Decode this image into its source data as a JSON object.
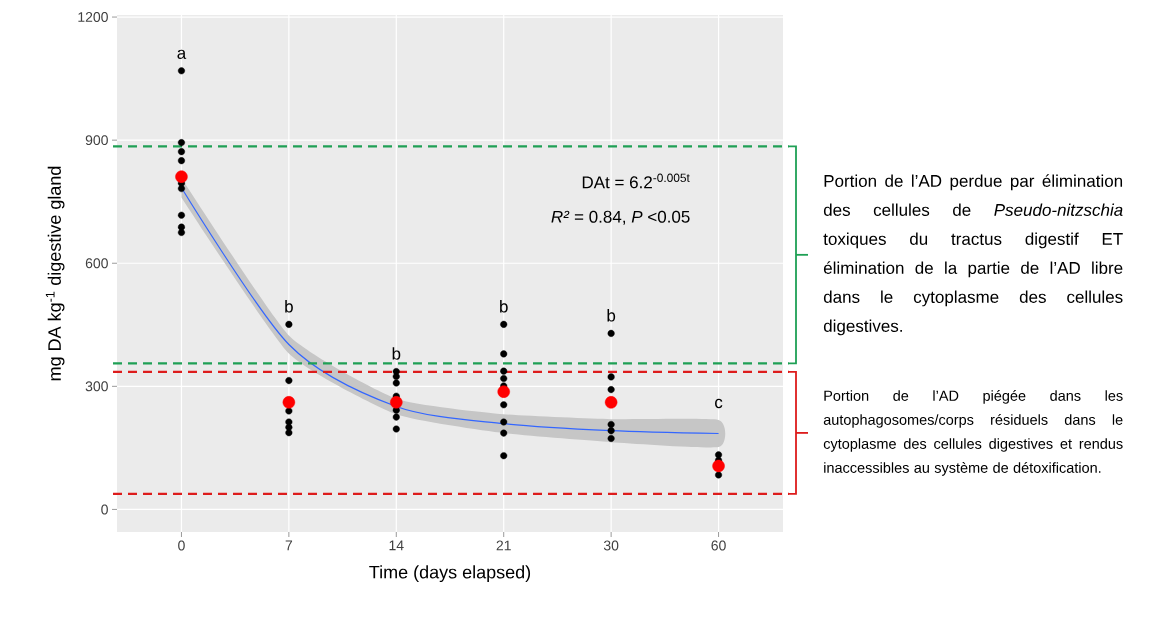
{
  "chart_data": {
    "type": "scatter",
    "xlabel": "Time (days elapsed)",
    "ylabel": "mg DA kg$^{-1}$ digestive gland",
    "categories": [
      "0",
      "7",
      "14",
      "21",
      "30",
      "60"
    ],
    "ylim": [
      -55,
      1205
    ],
    "yticks": [
      0,
      300,
      600,
      900,
      1200
    ],
    "grid": true,
    "series": [
      {
        "type": "line",
        "marker": "none",
        "color": "#3366ff",
        "x": [
          "0",
          "7",
          "14",
          "21",
          "30",
          "60"
        ],
        "values": [
          784,
          402,
          251,
          209,
          192,
          185
        ],
        "lower": [
          760,
          380,
          232,
          186,
          164,
          152
        ],
        "upper": [
          808,
          424,
          270,
          232,
          220,
          218
        ]
      },
      {
        "color": "#000000",
        "marker": "circle",
        "x": [
          "0",
          "0",
          "0",
          "0",
          "0",
          "0",
          "0",
          "0",
          "0",
          "7",
          "7",
          "7",
          "7",
          "7",
          "7",
          "14",
          "14",
          "14",
          "14",
          "14",
          "14",
          "14",
          "21",
          "21",
          "21",
          "21",
          "21",
          "21",
          "21",
          "21",
          "21",
          "30",
          "30",
          "30",
          "30",
          "30",
          "30",
          "60",
          "60",
          "60"
        ],
        "values": [
          1069,
          894,
          872,
          850,
          795,
          782,
          717,
          688,
          675,
          451,
          314,
          240,
          213,
          200,
          187,
          336,
          324,
          308,
          276,
          242,
          225,
          196,
          451,
          379,
          337,
          319,
          301,
          255,
          213,
          186,
          131,
          429,
          323,
          292,
          207,
          192,
          173,
          133,
          120,
          84
        ]
      },
      {
        "color": "#ff0000",
        "marker": "circle",
        "x": [
          "0",
          "7",
          "14",
          "21",
          "30",
          "60"
        ],
        "values": [
          811,
          261,
          261,
          287,
          261,
          106
        ]
      }
    ],
    "ref_lines": [
      {
        "axis": "y",
        "value": 885,
        "color": "#1fa055",
        "line_style": "dashed"
      },
      {
        "axis": "y",
        "value": 356,
        "color": "#1fa055",
        "line_style": "dashed"
      },
      {
        "axis": "y",
        "value": 335,
        "color": "#dd1c1c",
        "line_style": "dashed"
      },
      {
        "axis": "y",
        "value": 38,
        "color": "#dd1c1c",
        "line_style": "dashed"
      }
    ],
    "annotations": [
      "a",
      "b",
      "b",
      "b",
      "b",
      "c",
      "DAt = 6.2$^{-0.005t}$",
      "*R²* = 0.84, *P* <0.05",
      "Portion de l’AD perdue par élimination des cellules de *Pseudo-nitzschia* toxiques du tractus digestif ET élimination de la partie de l’AD libre dans le cytoplasme des cellules digestives.",
      "Portion de l’AD piégée dans les autophagosomes/corps résiduels dans le cytoplasme des cellules digestives et rendus inaccessibles au système de détoxification."
    ]
  }
}
